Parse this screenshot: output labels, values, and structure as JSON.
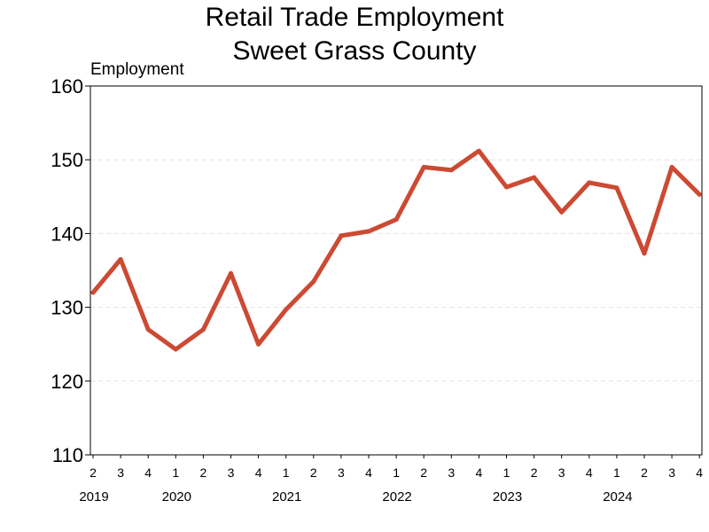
{
  "chart_data": {
    "type": "line",
    "title": [
      "Retail Trade Employment",
      "Sweet Grass County"
    ],
    "ylabel": "Employment",
    "ylim": [
      110,
      160
    ],
    "yticks": [
      110,
      120,
      130,
      140,
      150,
      160
    ],
    "grid": "horizontal-dashed",
    "quarters": [
      "2",
      "3",
      "4",
      "1",
      "2",
      "3",
      "4",
      "1",
      "2",
      "3",
      "4",
      "1",
      "2",
      "3",
      "4",
      "1",
      "2",
      "3",
      "4",
      "1",
      "2",
      "3",
      "4"
    ],
    "years": [
      {
        "label": "2019",
        "start": 0
      },
      {
        "label": "2020",
        "start": 3
      },
      {
        "label": "2021",
        "start": 7
      },
      {
        "label": "2022",
        "start": 11
      },
      {
        "label": "2023",
        "start": 15
      },
      {
        "label": "2024",
        "start": 19
      }
    ],
    "series": [
      {
        "color": "#cc4a33",
        "values": [
          132.0,
          136.5,
          127.0,
          124.3,
          127.0,
          134.6,
          125.0,
          129.7,
          133.5,
          139.7,
          140.3,
          141.9,
          149.0,
          148.6,
          151.2,
          146.3,
          147.6,
          142.9,
          146.9,
          146.2,
          137.3,
          149.0,
          145.3
        ]
      }
    ]
  }
}
